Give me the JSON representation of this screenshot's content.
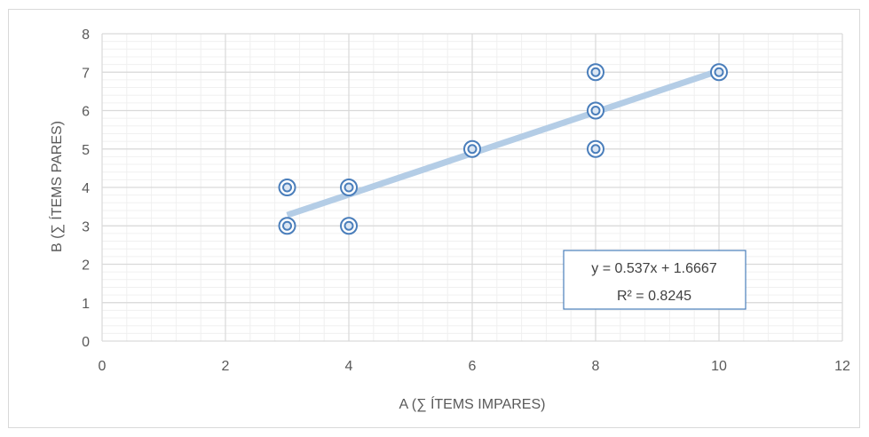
{
  "chart_data": {
    "type": "scatter",
    "title": "",
    "xlabel": "A (∑ ÍTEMS IMPARES)",
    "ylabel": "B (∑ ÍTEMS PARES)",
    "xlim": [
      0,
      12
    ],
    "ylim": [
      0,
      8
    ],
    "x_ticks": [
      "0",
      "2",
      "4",
      "6",
      "8",
      "10",
      "12"
    ],
    "y_ticks": [
      "0",
      "1",
      "2",
      "3",
      "4",
      "5",
      "6",
      "7",
      "8"
    ],
    "grid": true,
    "minor_grid": true,
    "legend": "none",
    "points": [
      {
        "x": 3,
        "y": 4
      },
      {
        "x": 3,
        "y": 3
      },
      {
        "x": 4,
        "y": 4
      },
      {
        "x": 4,
        "y": 3
      },
      {
        "x": 6,
        "y": 5
      },
      {
        "x": 8,
        "y": 7
      },
      {
        "x": 8,
        "y": 6
      },
      {
        "x": 8,
        "y": 5
      },
      {
        "x": 10,
        "y": 7
      }
    ],
    "trendline": {
      "type": "linear",
      "slope": 0.537,
      "intercept": 1.6667,
      "x_range": [
        3,
        10
      ],
      "equation": "y = 0.537x + 1.6667",
      "r_squared": "R² = 0.8245"
    },
    "colors": {
      "marker": "#4a7ebb",
      "trendline": "#b4cde6",
      "major_grid": "#d9d9d9",
      "minor_grid": "#f0f0f0",
      "label_box_border": "#4a7ebb"
    }
  }
}
